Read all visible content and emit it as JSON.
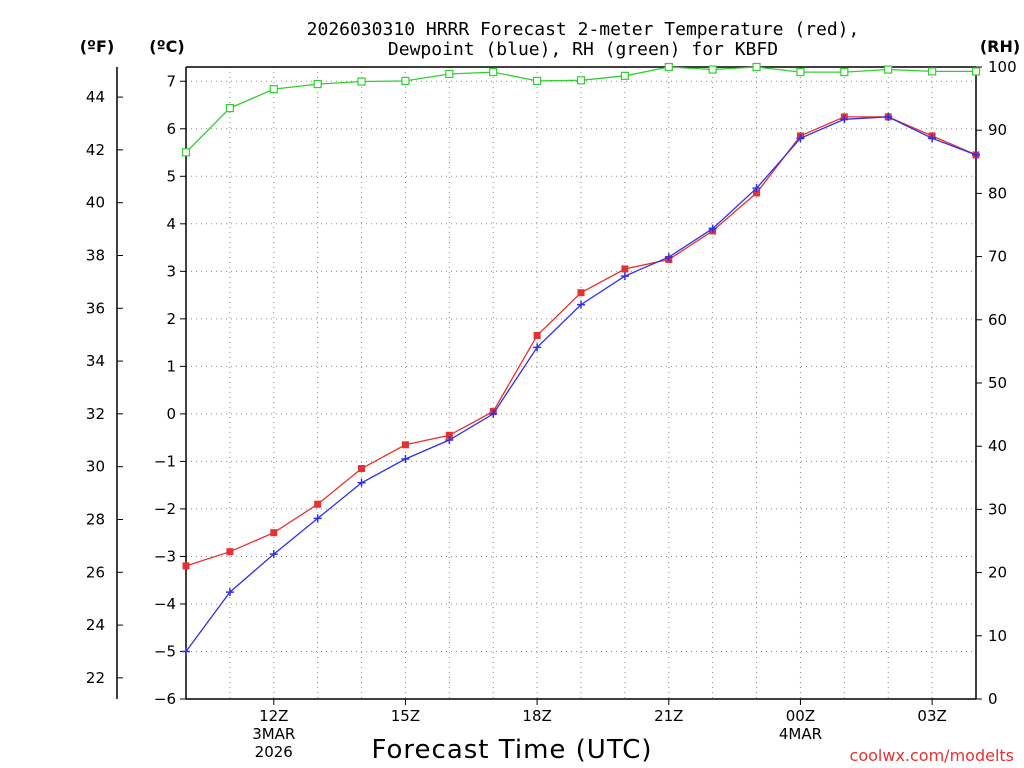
{
  "chart_data": {
    "type": "line",
    "title_line1": "2026030310 HRRR Forecast 2-meter Temperature (red),",
    "title_line2": "Dewpoint (blue), RH (green) for KBFD",
    "xlabel": "Forecast Time (UTC)",
    "credit": "coolwx.com/modelts",
    "units": {
      "fahrenheit": "(ºF)",
      "celsius": "(ºC)",
      "rh": "(RH)"
    },
    "hours": [
      10,
      11,
      12,
      13,
      14,
      15,
      16,
      17,
      18,
      19,
      20,
      21,
      22,
      23,
      24,
      25,
      26,
      27,
      28
    ],
    "x_range": [
      10,
      28
    ],
    "x_ticks": [
      {
        "hour": 12,
        "lines": [
          "12Z",
          "3MAR",
          "2026"
        ]
      },
      {
        "hour": 15,
        "lines": [
          "15Z"
        ]
      },
      {
        "hour": 18,
        "lines": [
          "18Z"
        ]
      },
      {
        "hour": 21,
        "lines": [
          "21Z"
        ]
      },
      {
        "hour": 24,
        "lines": [
          "00Z",
          "4MAR"
        ]
      },
      {
        "hour": 27,
        "lines": [
          "03Z"
        ]
      }
    ],
    "y_celsius": {
      "range": [
        -6,
        7.3
      ],
      "ticks": [
        "-6",
        "-5",
        "-4",
        "-3",
        "-2",
        "-1",
        "0",
        "1",
        "2",
        "3",
        "4",
        "5",
        "6",
        "7"
      ]
    },
    "y_fahrenheit": {
      "ticks": [
        "22",
        "24",
        "26",
        "28",
        "30",
        "32",
        "34",
        "36",
        "38",
        "40",
        "42",
        "44"
      ]
    },
    "y_rh": {
      "range": [
        0,
        100
      ],
      "ticks": [
        "0",
        "10",
        "20",
        "30",
        "40",
        "50",
        "60",
        "70",
        "80",
        "90",
        "100"
      ]
    },
    "series": [
      {
        "name": "Temperature",
        "color": "#e83030",
        "marker": "filled-square",
        "axis": "celsius",
        "values": [
          -3.2,
          -2.9,
          -2.5,
          -1.9,
          -1.15,
          -0.65,
          -0.45,
          0.05,
          1.65,
          2.55,
          3.05,
          3.25,
          3.85,
          4.65,
          5.85,
          6.25,
          6.25,
          5.85,
          5.45
        ]
      },
      {
        "name": "Dewpoint",
        "color": "#3030e8",
        "marker": "plus",
        "axis": "celsius",
        "values": [
          -5.0,
          -3.75,
          -2.95,
          -2.2,
          -1.45,
          -0.95,
          -0.55,
          -0.0,
          1.4,
          2.3,
          2.9,
          3.3,
          3.9,
          4.75,
          5.8,
          6.2,
          6.25,
          5.8,
          5.45
        ]
      },
      {
        "name": "RH",
        "color": "#30d030",
        "marker": "open-square",
        "axis": "rh",
        "values": [
          86.5,
          93.5,
          96.5,
          97.3,
          97.7,
          97.8,
          98.9,
          99.2,
          97.8,
          97.9,
          98.6,
          100,
          99.6,
          100,
          99.2,
          99.2,
          99.6,
          99.3,
          99.3
        ]
      }
    ]
  }
}
